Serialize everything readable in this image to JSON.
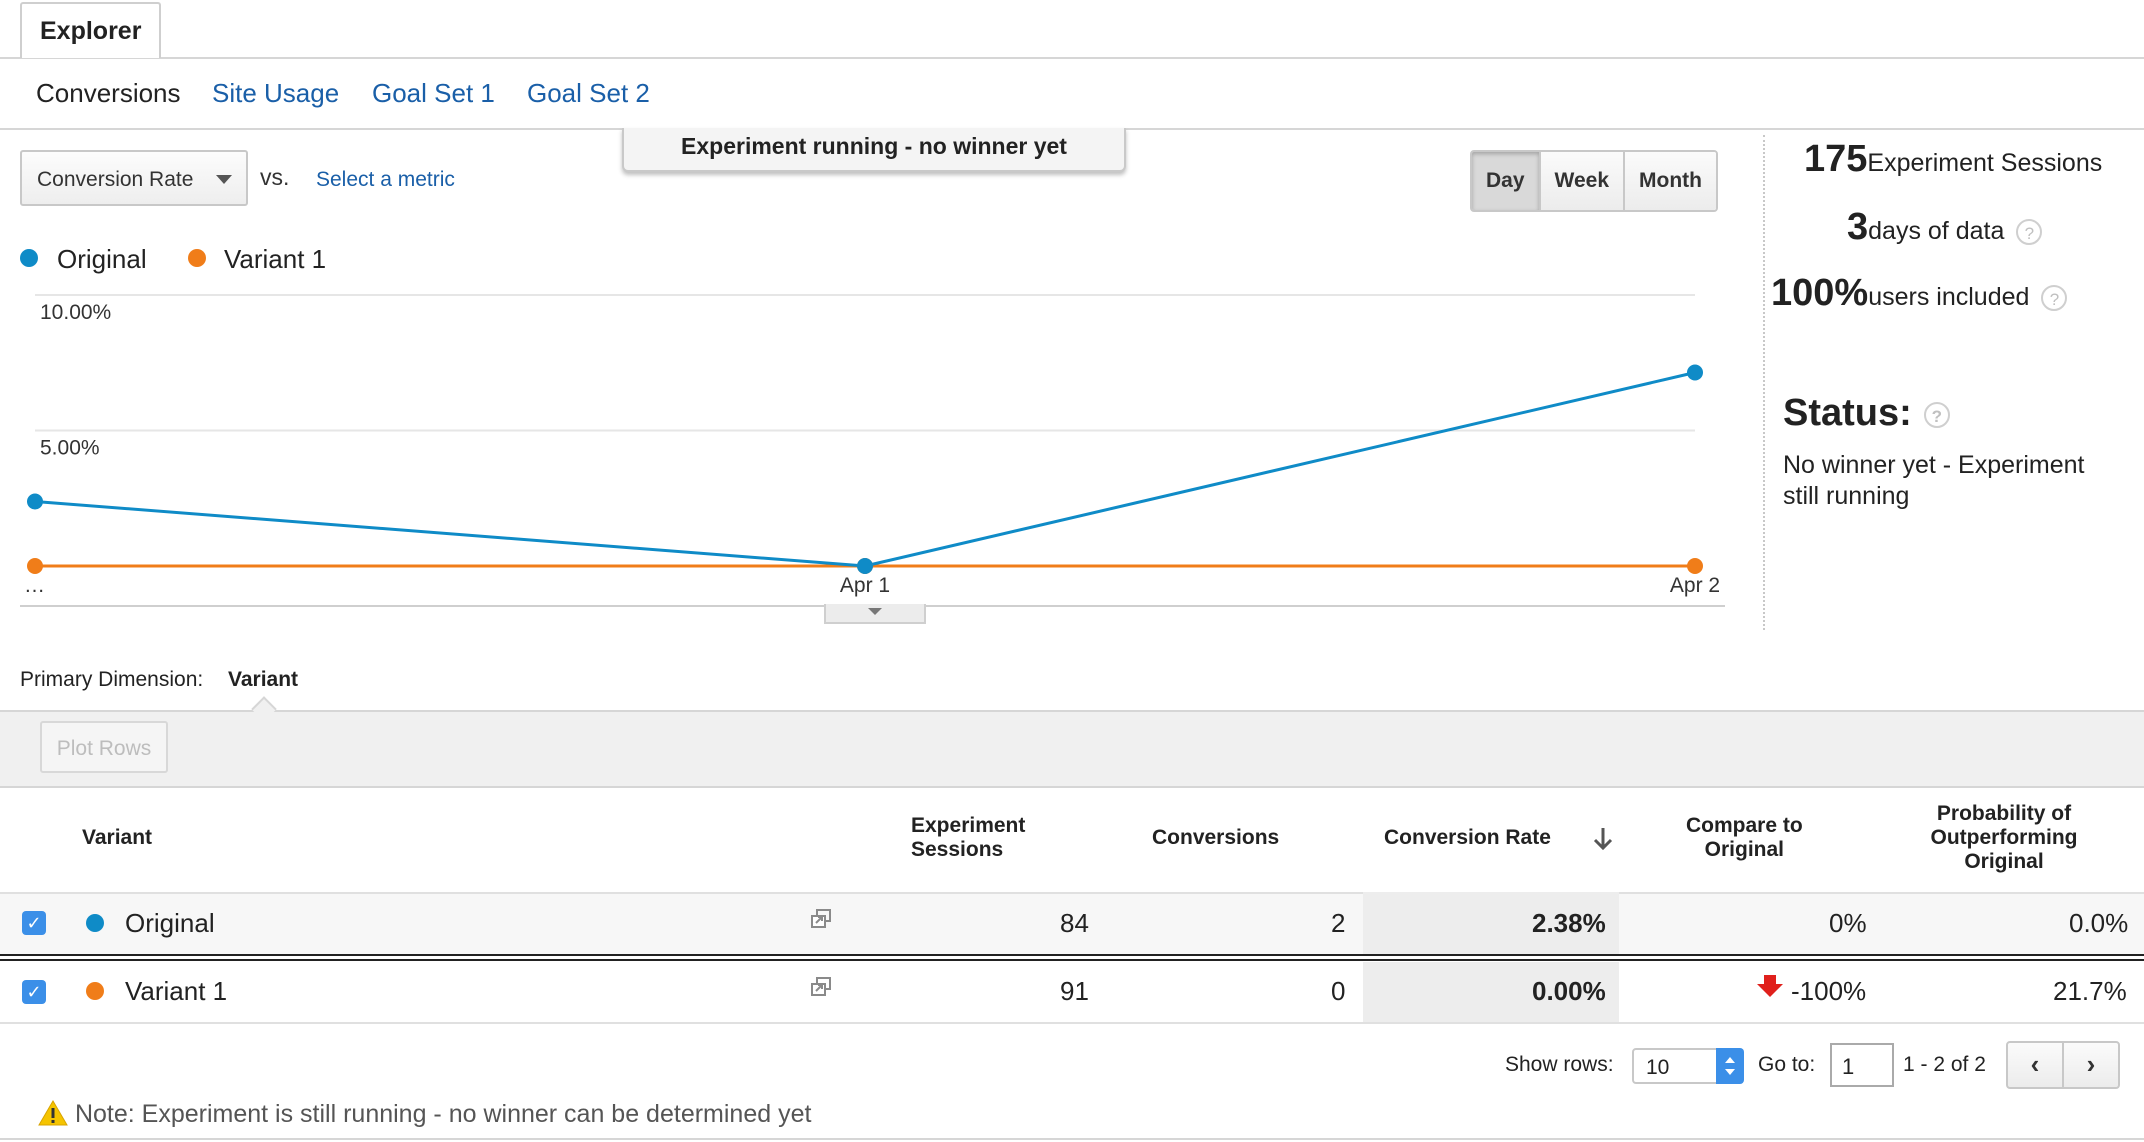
{
  "tabs": {
    "explorer": "Explorer"
  },
  "subtabs": [
    {
      "label": "Conversions",
      "active": true
    },
    {
      "label": "Site Usage",
      "active": false
    },
    {
      "label": "Goal Set 1",
      "active": false
    },
    {
      "label": "Goal Set 2",
      "active": false
    }
  ],
  "banner": "Experiment running - no winner yet",
  "metric_select": {
    "value": "Conversion Rate"
  },
  "vs_label": "vs.",
  "select_metric_link": "Select a metric",
  "period_buttons": [
    {
      "label": "Day",
      "active": true
    },
    {
      "label": "Week",
      "active": false
    },
    {
      "label": "Month",
      "active": false
    }
  ],
  "legend": [
    {
      "label": "Original",
      "color": "#0f8bc7"
    },
    {
      "label": "Variant 1",
      "color": "#f07d19"
    }
  ],
  "chart_data": {
    "type": "line",
    "x": [
      "…",
      "Apr 1",
      "Apr 2"
    ],
    "series": [
      {
        "name": "Original",
        "color": "#0f8bc7",
        "values": [
          2.38,
          0.0,
          7.14
        ]
      },
      {
        "name": "Variant 1",
        "color": "#f07d19",
        "values": [
          0.0,
          0.0,
          0.0
        ]
      }
    ],
    "y_ticks": [
      "10.00%",
      "5.00%"
    ],
    "ylim": [
      0,
      10
    ],
    "grid": true,
    "legend": "top-left"
  },
  "stats": {
    "sessions_value": "175",
    "sessions_label": "Experiment Sessions",
    "days_value": "3",
    "days_label": "days of data",
    "users_value": "100%",
    "users_label": "users included",
    "status_title": "Status:",
    "status_text": "No winner yet - Experiment still running",
    "help": "?"
  },
  "primary_dimension": {
    "label": "Primary Dimension:",
    "value": "Variant"
  },
  "plot_rows": "Plot Rows",
  "table": {
    "headers": {
      "variant": "Variant",
      "sessions_line1": "Experiment",
      "sessions_line2": "Sessions",
      "conversions": "Conversions",
      "conversion_rate": "Conversion Rate",
      "compare_line1": "Compare to",
      "compare_line2": "Original",
      "prob_line1": "Probability of",
      "prob_line2": "Outperforming",
      "prob_line3": "Original"
    },
    "rows": [
      {
        "variant": "Original",
        "color": "#0f8bc7",
        "sessions": "84",
        "conversions": "2",
        "conversion_rate": "2.38%",
        "compare": "0%",
        "probability": "0.0%"
      },
      {
        "variant": "Variant 1",
        "color": "#f07d19",
        "sessions": "91",
        "conversions": "0",
        "conversion_rate": "0.00%",
        "compare": "-100%",
        "probability": "21.7%"
      }
    ]
  },
  "pagination": {
    "show_rows_label": "Show rows:",
    "rows_value": "10",
    "goto_label": "Go to:",
    "goto_value": "1",
    "range": "1 - 2 of 2"
  },
  "note": "Note: Experiment is still running - no winner can be determined yet"
}
